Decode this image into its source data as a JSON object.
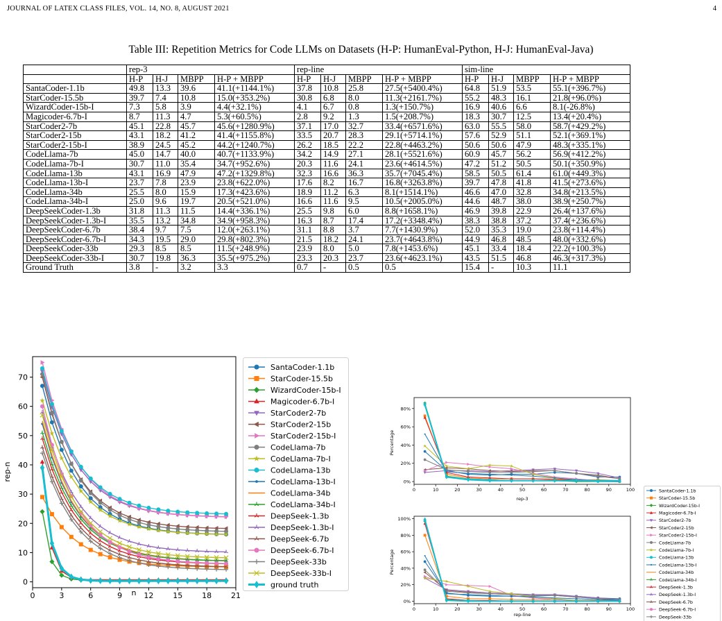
{
  "header": {
    "journal": "JOURNAL OF LATEX CLASS FILES, VOL. 14, NO. 8, AUGUST 2021",
    "page_number": "4"
  },
  "table": {
    "caption": "Table III: Repetition Metrics for Code LLMs on Datasets (H-P: HumanEval-Python, H-J: HumanEval-Java)",
    "groups": [
      "rep-3",
      "rep-line",
      "sim-line"
    ],
    "subheaders": [
      "H-P",
      "H-J",
      "MBPP",
      "H-P + MBPP"
    ],
    "rows": [
      [
        "SantaCoder-1.1b",
        "49.8",
        "13.3",
        "39.6",
        "41.1(+1144.1%)",
        "37.8",
        "10.8",
        "25.8",
        "27.5(+5400.4%)",
        "64.8",
        "51.9",
        "53.5",
        "55.1(+396.7%)"
      ],
      [
        "StarCoder-15.5b",
        "39.7",
        "7.4",
        "10.8",
        "15.0(+353.2%)",
        "30.8",
        "6.8",
        "8.0",
        "11.3(+2161.7%)",
        "55.2",
        "48.3",
        "16.1",
        "21.8(+96.0%)"
      ],
      [
        "WizardCoder-15b-I",
        "7.3",
        "5.8",
        "3.9",
        "4.4(+32.1%)",
        "4.1",
        "6.7",
        "0.8",
        "1.3(+150.7%)",
        "16.9",
        "40.6",
        "6.6",
        "8.1(-26.8%)"
      ],
      [
        "Magicoder-6.7b-I",
        "8.7",
        "11.3",
        "4.7",
        "5.3(+60.5%)",
        "2.8",
        "9.2",
        "1.3",
        "1.5(+208.7%)",
        "18.3",
        "30.7",
        "12.5",
        "13.4(+20.4%)"
      ],
      [
        "StarCoder2-7b",
        "45.1",
        "22.8",
        "45.7",
        "45.6(+1280.9%)",
        "37.1",
        "17.0",
        "32.7",
        "33.4(+6571.6%)",
        "63.0",
        "55.5",
        "58.0",
        "58.7(+429.2%)"
      ],
      [
        "StarCoder2-15b",
        "43.1",
        "18.2",
        "41.2",
        "41.4(+1155.8%)",
        "33.5",
        "20.7",
        "28.3",
        "29.1(+5714.1%)",
        "57.6",
        "52.9",
        "51.1",
        "52.1(+369.1%)"
      ],
      [
        "StarCoder2-15b-I",
        "38.9",
        "24.5",
        "45.2",
        "44.2(+1240.7%)",
        "26.2",
        "18.5",
        "22.2",
        "22.8(+4463.2%)",
        "50.6",
        "50.6",
        "47.9",
        "48.3(+335.1%)"
      ],
      [
        "CodeLlama-7b",
        "45.0",
        "14.7",
        "40.0",
        "40.7(+1133.9%)",
        "34.2",
        "14.9",
        "27.1",
        "28.1(+5521.6%)",
        "60.9",
        "45.7",
        "56.2",
        "56.9(+412.2%)"
      ],
      [
        "CodeLlama-7b-I",
        "30.7",
        "11.0",
        "35.4",
        "34.7(+952.6%)",
        "20.3",
        "11.6",
        "24.1",
        "23.6(+4614.5%)",
        "47.2",
        "51.2",
        "50.5",
        "50.1(+350.9%)"
      ],
      [
        "CodeLlama-13b",
        "43.1",
        "16.9",
        "47.9",
        "47.2(+1329.8%)",
        "32.3",
        "16.6",
        "36.3",
        "35.7(+7045.4%)",
        "58.5",
        "50.5",
        "61.4",
        "61.0(+449.3%)"
      ],
      [
        "CodeLlama-13b-I",
        "23.7",
        "7.8",
        "23.9",
        "23.8(+622.0%)",
        "17.6",
        "8.2",
        "16.7",
        "16.8(+3263.8%)",
        "39.7",
        "47.8",
        "41.8",
        "41.5(+273.6%)"
      ],
      [
        "CodeLlama-34b",
        "25.5",
        "8.0",
        "15.9",
        "17.3(+423.6%)",
        "18.9",
        "11.2",
        "6.3",
        "8.1(+1514.1%)",
        "46.6",
        "47.0",
        "32.8",
        "34.8(+213.5%)"
      ],
      [
        "CodeLlama-34b-I",
        "25.0",
        "9.6",
        "19.7",
        "20.5(+521.0%)",
        "16.6",
        "11.6",
        "9.5",
        "10.5(+2005.0%)",
        "44.6",
        "48.7",
        "38.0",
        "38.9(+250.7%)"
      ],
      [
        "DeepSeekCoder-1.3b",
        "31.8",
        "11.3",
        "11.5",
        "14.4(+336.1%)",
        "25.5",
        "9.8",
        "6.0",
        "8.8(+1658.1%)",
        "46.9",
        "39.8",
        "22.9",
        "26.4(+137.6%)"
      ],
      [
        "DeepSeekCoder-1.3b-I",
        "35.5",
        "13.2",
        "34.8",
        "34.9(+958.3%)",
        "16.3",
        "8.7",
        "17.4",
        "17.2(+3348.4%)",
        "38.3",
        "38.8",
        "37.2",
        "37.4(+236.6%)"
      ],
      [
        "DeepSeekCoder-6.7b",
        "38.4",
        "9.7",
        "7.5",
        "12.0(+263.1%)",
        "31.1",
        "8.8",
        "3.7",
        "7.7(+1430.9%)",
        "52.0",
        "35.3",
        "19.0",
        "23.8(+114.4%)"
      ],
      [
        "DeepSeekCoder-6.7b-I",
        "34.3",
        "19.5",
        "29.0",
        "29.8(+802.3%)",
        "21.5",
        "18.2",
        "24.1",
        "23.7(+4643.8%)",
        "44.9",
        "46.8",
        "48.5",
        "48.0(+332.6%)"
      ],
      [
        "DeepSeekCoder-33b",
        "29.3",
        "8.5",
        "8.5",
        "11.5(+248.9%)",
        "23.9",
        "8.0",
        "5.0",
        "7.8(+1453.6%)",
        "45.1",
        "33.4",
        "18.4",
        "22.2(+100.3%)"
      ],
      [
        "DeepSeekCoder-33b-I",
        "30.7",
        "19.8",
        "36.3",
        "35.5(+975.2%)",
        "23.3",
        "20.3",
        "23.7",
        "23.6(+4623.1%)",
        "43.5",
        "51.5",
        "46.8",
        "46.3(+317.3%)"
      ],
      [
        "Ground Truth",
        "3.8",
        "-",
        "3.2",
        "3.3",
        "0.7",
        "-",
        "0.5",
        "0.5",
        "15.4",
        "-",
        "10.3",
        "11.1"
      ]
    ]
  },
  "legend_entries": [
    {
      "name": "SantaCoder-1.1b",
      "color": "#1f77b4",
      "marker": "o"
    },
    {
      "name": "StarCoder-15.5b",
      "color": "#ff7f0e",
      "marker": "s"
    },
    {
      "name": "WizardCoder-15b-I",
      "color": "#2ca02c",
      "marker": "D"
    },
    {
      "name": "Magicoder-6.7b-I",
      "color": "#d62728",
      "marker": "^"
    },
    {
      "name": "StarCoder2-7b",
      "color": "#9467bd",
      "marker": "v"
    },
    {
      "name": "StarCoder2-15b",
      "color": "#8c564b",
      "marker": "<"
    },
    {
      "name": "StarCoder2-15b-I",
      "color": "#e377c2",
      "marker": ">"
    },
    {
      "name": "CodeLlama-7b",
      "color": "#7f7f7f",
      "marker": "o"
    },
    {
      "name": "CodeLlama-7b-I",
      "color": "#bcbd22",
      "marker": "*"
    },
    {
      "name": "CodeLlama-13b",
      "color": "#17becf",
      "marker": "o"
    },
    {
      "name": "CodeLlama-13b-I",
      "color": "#1f77b4",
      "marker": "."
    },
    {
      "name": "CodeLlama-34b",
      "color": "#ff7f0e",
      "marker": ""
    },
    {
      "name": "CodeLlama-34b-I",
      "color": "#2ca02c",
      "marker": "1"
    },
    {
      "name": "DeepSeek-1.3b",
      "color": "#d62728",
      "marker": "2"
    },
    {
      "name": "DeepSeek-1.3b-I",
      "color": "#9467bd",
      "marker": "3"
    },
    {
      "name": "DeepSeek-6.7b",
      "color": "#8c564b",
      "marker": "4"
    },
    {
      "name": "DeepSeek-6.7b-I",
      "color": "#e377c2",
      "marker": "o"
    },
    {
      "name": "DeepSeek-33b",
      "color": "#7f7f7f",
      "marker": "+"
    },
    {
      "name": "DeepSeek-33b-I",
      "color": "#bcbd22",
      "marker": "x"
    },
    {
      "name": "ground truth",
      "color": "#17becf",
      "marker": "d"
    }
  ],
  "small_legend_entries": [
    "SantaCoder-1.1b",
    "StarCoder-15.5b",
    "WizardCoder-15b-I",
    "Magicoder-6.7b-I",
    "StarCoder2-7b",
    "StarCoder2-15b",
    "StarCoder2-15b-I",
    "CodeLlama-7b",
    "CodeLlama-7b-I",
    "CodeLlama-13b",
    "CodeLlama-13b-I",
    "CodeLlama-34b",
    "CodeLlama-34b-I",
    "DeepSeek-1.3b",
    "DeepSeek-1.3b-I",
    "DeepSeek-6.7b",
    "DeepSeek-6.7b-I",
    "DeepSeek-33b"
  ],
  "chart_data": [
    {
      "type": "line",
      "xlabel": "n",
      "ylabel": "rep-n",
      "xlim": [
        0,
        21
      ],
      "ylim": [
        -2,
        77
      ],
      "xticks": [
        0,
        3,
        6,
        9,
        12,
        15,
        18,
        21
      ],
      "yticks": [
        0,
        10,
        20,
        30,
        40,
        50,
        60,
        70
      ],
      "x": [
        1,
        2,
        3,
        4,
        5,
        6,
        7,
        8,
        9,
        10,
        11,
        12,
        13,
        14,
        15,
        16,
        17,
        18,
        19,
        20
      ],
      "series": [
        {
          "name": "SantaCoder-1.1b",
          "start": 67,
          "end": 16
        },
        {
          "name": "StarCoder-15.5b",
          "start": 29,
          "end": 5
        },
        {
          "name": "WizardCoder-15b-I",
          "start": 24,
          "end": 0.5
        },
        {
          "name": "Magicoder-6.7b-I",
          "start": 41,
          "end": 0.7
        },
        {
          "name": "StarCoder2-7b",
          "start": 72,
          "end": 22
        },
        {
          "name": "StarCoder2-15b",
          "start": 70,
          "end": 18
        },
        {
          "name": "StarCoder2-15b-I",
          "start": 75,
          "end": 22
        },
        {
          "name": "CodeLlama-7b",
          "start": 71,
          "end": 17
        },
        {
          "name": "CodeLlama-7b-I",
          "start": 62,
          "end": 16
        },
        {
          "name": "CodeLlama-13b",
          "start": 73,
          "end": 23
        },
        {
          "name": "CodeLlama-13b-I",
          "start": 54,
          "end": 7
        },
        {
          "name": "CodeLlama-34b",
          "start": 55,
          "end": 7
        },
        {
          "name": "CodeLlama-34b-I",
          "start": 51,
          "end": 7
        },
        {
          "name": "DeepSeek-1.3b",
          "start": 49,
          "end": 6
        },
        {
          "name": "DeepSeek-1.3b-I",
          "start": 58,
          "end": 10
        },
        {
          "name": "DeepSeek-6.7b",
          "start": 46,
          "end": 5
        },
        {
          "name": "DeepSeek-6.7b-I",
          "start": 60,
          "end": 6
        },
        {
          "name": "DeepSeek-33b",
          "start": 44,
          "end": 4
        },
        {
          "name": "DeepSeek-33b-I",
          "start": 57,
          "end": 8
        },
        {
          "name": "ground truth",
          "start": 39,
          "end": 0.3
        }
      ]
    },
    {
      "type": "line",
      "xlabel": "rep-3",
      "ylabel": "Percentage",
      "xlim": [
        0,
        100
      ],
      "ylim": [
        -3,
        92
      ],
      "xticks": [
        0,
        10,
        20,
        30,
        40,
        50,
        60,
        70,
        80,
        90,
        100
      ],
      "yticks": [
        "0%",
        "20%",
        "40%",
        "60%",
        "80%"
      ],
      "x": [
        5,
        15,
        25,
        35,
        45,
        55,
        65,
        75,
        85,
        95
      ],
      "series": [
        {
          "name": "SantaCoder-1.1b",
          "values": [
            33,
            12,
            8,
            7,
            8,
            8,
            10,
            9,
            5,
            5
          ]
        },
        {
          "name": "StarCoder-15.5b",
          "values": [
            72,
            8,
            4,
            3,
            3,
            3,
            3,
            2,
            2,
            1
          ]
        },
        {
          "name": "WizardCoder-15b-I",
          "values": [
            86,
            6,
            3,
            2,
            1,
            1,
            1,
            0,
            0,
            0
          ]
        },
        {
          "name": "Magicoder-6.7b-I",
          "values": [
            70,
            10,
            5,
            4,
            3,
            3,
            2,
            2,
            1,
            0
          ]
        },
        {
          "name": "StarCoder2-7b",
          "values": [
            10,
            12,
            12,
            11,
            12,
            13,
            14,
            12,
            9,
            4
          ]
        },
        {
          "name": "StarCoder2-15b",
          "values": [
            13,
            15,
            14,
            12,
            11,
            12,
            12,
            9,
            7,
            3
          ]
        },
        {
          "name": "StarCoder2-15b-I",
          "values": [
            12,
            21,
            19,
            16,
            14,
            9,
            5,
            3,
            1,
            0
          ]
        },
        {
          "name": "CodeLlama-7b",
          "values": [
            24,
            13,
            11,
            10,
            10,
            11,
            12,
            9,
            6,
            3
          ]
        },
        {
          "name": "CodeLlama-7b-I",
          "values": [
            39,
            17,
            14,
            18,
            17,
            8,
            4,
            2,
            1,
            0
          ]
        },
        {
          "name": "CodeLlama-13b",
          "values": [
            85,
            5,
            3,
            2,
            1,
            1,
            1,
            1,
            0,
            0
          ]
        },
        {
          "name": "CodeLlama-13b-I",
          "values": [
            52,
            11,
            9,
            8,
            7,
            6,
            4,
            2,
            1,
            0
          ]
        },
        {
          "name": "ground truth",
          "values": [
            84,
            5,
            2,
            1,
            1,
            1,
            1,
            1,
            1,
            1
          ]
        }
      ]
    },
    {
      "type": "line",
      "xlabel": "rep-line",
      "ylabel": "Percentage",
      "xlim": [
        0,
        100
      ],
      "ylim": [
        -3,
        103
      ],
      "xticks": [
        0,
        10,
        20,
        30,
        40,
        50,
        60,
        70,
        80,
        90,
        100
      ],
      "yticks": [
        "0%",
        "20%",
        "40%",
        "60%",
        "80%",
        "100%"
      ],
      "x": [
        5,
        15,
        25,
        35,
        45,
        55,
        65,
        75,
        85,
        95
      ],
      "series": [
        {
          "name": "SantaCoder-1.1b",
          "values": [
            48,
            10,
            7,
            6,
            6,
            6,
            7,
            6,
            4,
            3
          ]
        },
        {
          "name": "StarCoder-15.5b",
          "values": [
            80,
            6,
            3,
            3,
            2,
            2,
            2,
            1,
            1,
            1
          ]
        },
        {
          "name": "WizardCoder-15b-I",
          "values": [
            97,
            2,
            1,
            0,
            0,
            0,
            0,
            0,
            0,
            0
          ]
        },
        {
          "name": "Magicoder-6.7b-I",
          "values": [
            94,
            3,
            1,
            1,
            0,
            0,
            0,
            0,
            0,
            0
          ]
        },
        {
          "name": "StarCoder2-7b",
          "values": [
            28,
            14,
            12,
            10,
            9,
            8,
            8,
            6,
            4,
            2
          ]
        },
        {
          "name": "StarCoder2-15b",
          "values": [
            35,
            13,
            11,
            9,
            8,
            7,
            7,
            5,
            3,
            1
          ]
        },
        {
          "name": "StarCoder2-15b-I",
          "values": [
            30,
            20,
            19,
            18,
            7,
            4,
            2,
            1,
            0,
            0
          ]
        },
        {
          "name": "CodeLlama-7b",
          "values": [
            38,
            12,
            10,
            9,
            8,
            7,
            7,
            5,
            3,
            2
          ]
        },
        {
          "name": "CodeLlama-7b-I",
          "values": [
            28,
            24,
            18,
            12,
            9,
            5,
            3,
            1,
            0,
            0
          ]
        },
        {
          "name": "CodeLlama-13b",
          "values": [
            98,
            1,
            1,
            0,
            0,
            0,
            0,
            0,
            0,
            0
          ]
        },
        {
          "name": "CodeLlama-13b-I",
          "values": [
            55,
            9,
            8,
            7,
            6,
            5,
            4,
            3,
            2,
            1
          ]
        },
        {
          "name": "ground truth",
          "values": [
            99,
            1,
            0,
            0,
            0,
            0,
            0,
            0,
            0,
            0
          ]
        }
      ]
    }
  ]
}
